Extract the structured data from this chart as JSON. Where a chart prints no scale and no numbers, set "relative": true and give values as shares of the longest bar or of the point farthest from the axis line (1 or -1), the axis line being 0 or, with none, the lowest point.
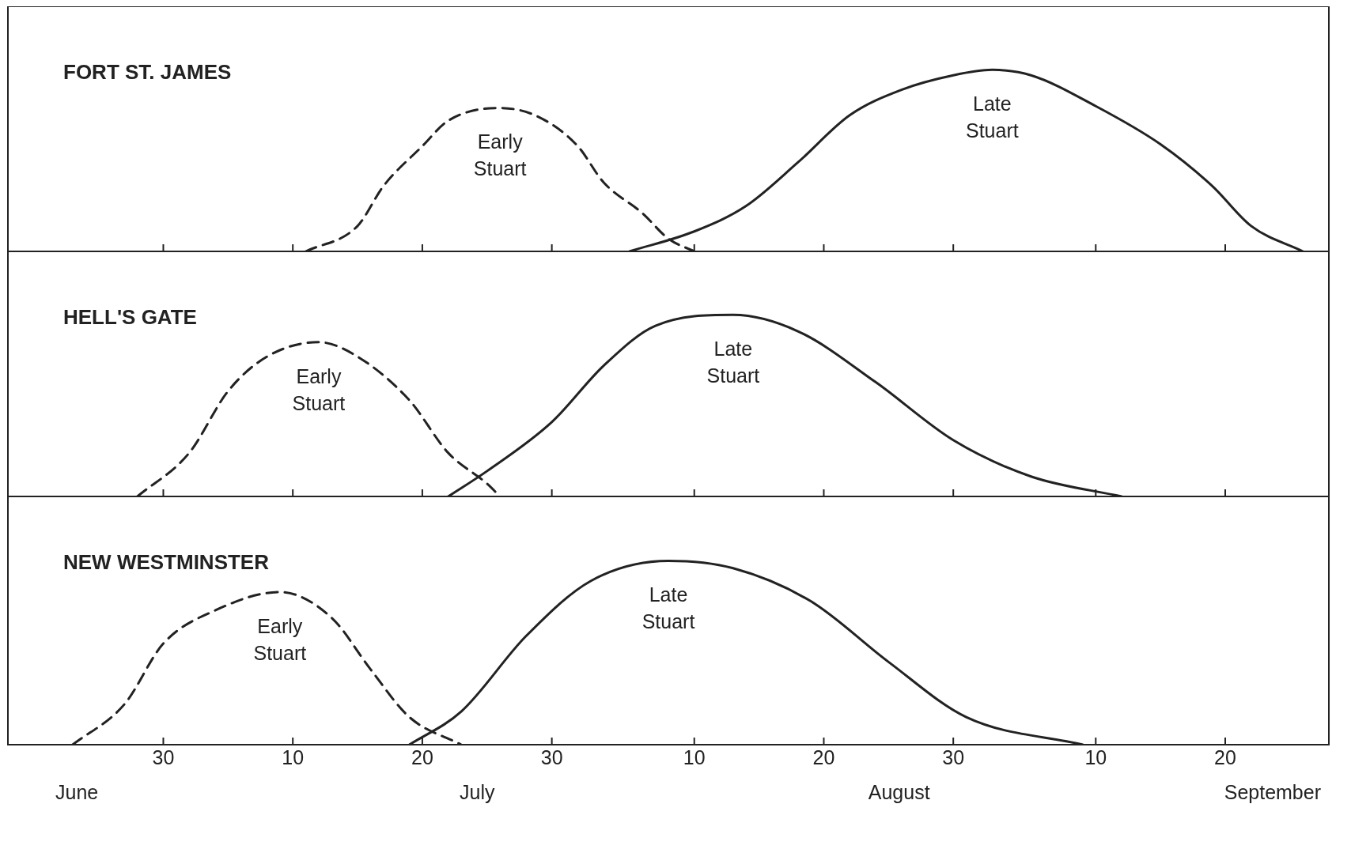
{
  "chart_data": [
    {
      "type": "line",
      "title": "FORT ST. JAMES",
      "relative": true,
      "legend": false,
      "marker": "none",
      "tick_labels": false,
      "xlim": [
        "--06-18",
        "--09-28"
      ],
      "xticks": [
        {
          "value": "--06-30",
          "label": "30"
        },
        {
          "value": "--07-10",
          "label": "10"
        },
        {
          "value": "--07-20",
          "label": "20"
        },
        {
          "value": "--07-30",
          "label": "30"
        },
        {
          "value": "--08-10",
          "label": "10"
        },
        {
          "value": "--08-20",
          "label": "20"
        },
        {
          "value": "--08-30",
          "label": "30"
        },
        {
          "value": "--09-10",
          "label": "10"
        },
        {
          "value": "--09-20",
          "label": "20"
        }
      ],
      "series": [
        {
          "name": "Early Stuart",
          "color": "#222222",
          "line_style": "dashed",
          "x": [
            "--07-11",
            "--07-15",
            "--07-17",
            "--07-20",
            "--07-22",
            "--07-26",
            "--07-29",
            "--08-01",
            "--08-03",
            "--08-06",
            "--08-08",
            "--08-10"
          ],
          "values": [
            0,
            0.14,
            0.36,
            0.58,
            0.72,
            0.79,
            0.74,
            0.58,
            0.38,
            0.21,
            0.07,
            0
          ]
        },
        {
          "name": "Late Stuart",
          "color": "#222222",
          "line_style": "solid",
          "x": [
            "--08-05",
            "--08-10",
            "--08-14",
            "--08-18",
            "--08-22",
            "--08-26",
            "--08-30",
            "--09-02",
            "--09-05",
            "--09-10",
            "--09-15",
            "--09-19",
            "--09-22",
            "--09-26"
          ],
          "values": [
            0,
            0.11,
            0.25,
            0.49,
            0.75,
            0.89,
            0.97,
            1,
            0.97,
            0.8,
            0.59,
            0.36,
            0.14,
            0
          ]
        }
      ]
    },
    {
      "type": "line",
      "title": "HELL'S GATE",
      "relative": true,
      "legend": false,
      "marker": "none",
      "tick_labels": false,
      "xlim": [
        "--06-18",
        "--09-28"
      ],
      "xticks": [
        {
          "value": "--06-30",
          "label": "30"
        },
        {
          "value": "--07-10",
          "label": "10"
        },
        {
          "value": "--07-20",
          "label": "20"
        },
        {
          "value": "--07-30",
          "label": "30"
        },
        {
          "value": "--08-10",
          "label": "10"
        },
        {
          "value": "--08-20",
          "label": "20"
        },
        {
          "value": "--08-30",
          "label": "30"
        },
        {
          "value": "--09-10",
          "label": "10"
        },
        {
          "value": "--09-20",
          "label": "20"
        }
      ],
      "series": [
        {
          "name": "Early Stuart",
          "color": "#222222",
          "line_style": "dashed",
          "x": [
            "--06-28",
            "--07-02",
            "--07-05",
            "--07-08",
            "--07-12",
            "--07-15",
            "--07-19",
            "--07-22",
            "--07-25",
            "--07-26"
          ],
          "values": [
            0,
            0.24,
            0.58,
            0.77,
            0.85,
            0.77,
            0.53,
            0.24,
            0.07,
            0
          ]
        },
        {
          "name": "Late Stuart",
          "color": "#222222",
          "line_style": "solid",
          "x": [
            "--07-22",
            "--07-25",
            "--07-30",
            "--08-03",
            "--08-07",
            "--08-13",
            "--08-18",
            "--08-24",
            "--08-30",
            "--09-05",
            "--09-12"
          ],
          "values": [
            0,
            0.14,
            0.41,
            0.72,
            0.94,
            1,
            0.91,
            0.63,
            0.31,
            0.11,
            0
          ]
        }
      ]
    },
    {
      "type": "line",
      "title": "NEW WESTMINSTER",
      "relative": true,
      "legend": false,
      "marker": "none",
      "tick_labels": "x",
      "xlim": [
        "--06-18",
        "--09-28"
      ],
      "xticks": [
        {
          "value": "--06-30",
          "label": "30"
        },
        {
          "value": "--07-10",
          "label": "10"
        },
        {
          "value": "--07-20",
          "label": "20"
        },
        {
          "value": "--07-30",
          "label": "30"
        },
        {
          "value": "--08-10",
          "label": "10"
        },
        {
          "value": "--08-20",
          "label": "20"
        },
        {
          "value": "--08-30",
          "label": "30"
        },
        {
          "value": "--09-10",
          "label": "10"
        },
        {
          "value": "--09-20",
          "label": "20"
        }
      ],
      "annotations": [
        "June",
        "July",
        "August",
        "September"
      ],
      "series": [
        {
          "name": "Early Stuart",
          "color": "#222222",
          "line_style": "dashed",
          "x": [
            "--06-23",
            "--06-27",
            "--06-30",
            "--07-04",
            "--07-09",
            "--07-13",
            "--07-16",
            "--07-19",
            "--07-23"
          ],
          "values": [
            0,
            0.22,
            0.55,
            0.73,
            0.83,
            0.69,
            0.41,
            0.15,
            0
          ]
        },
        {
          "name": "Late Stuart",
          "color": "#222222",
          "line_style": "solid",
          "x": [
            "--07-19",
            "--07-23",
            "--07-28",
            "--08-02",
            "--08-08",
            "--08-13",
            "--08-19",
            "--08-25",
            "--08-31",
            "--09-09"
          ],
          "values": [
            0,
            0.18,
            0.59,
            0.89,
            1,
            0.96,
            0.78,
            0.45,
            0.15,
            0
          ]
        }
      ]
    }
  ]
}
